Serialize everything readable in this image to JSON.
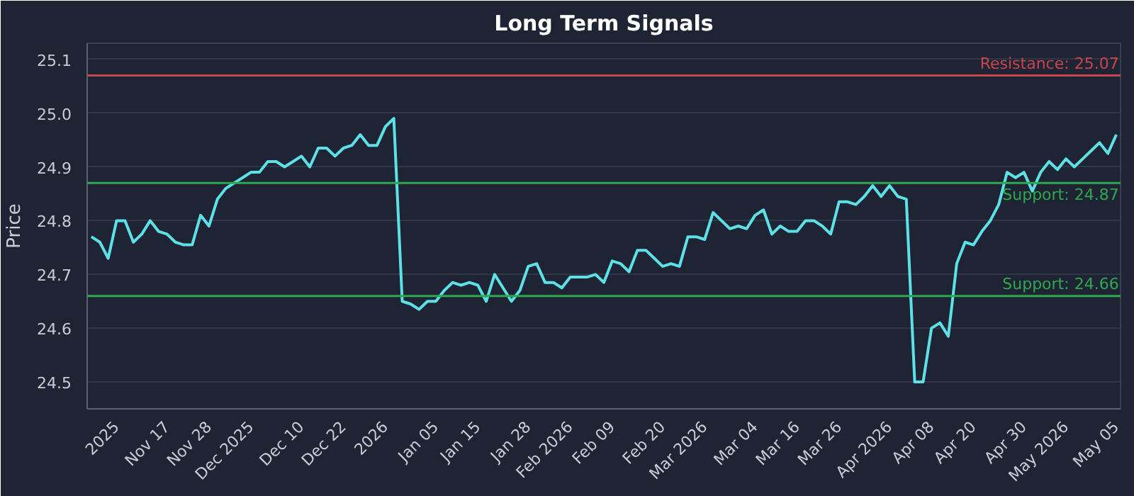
{
  "chart_data": {
    "type": "line",
    "title": "Long Term Signals",
    "ylabel": "Price",
    "categories": [
      null,
      null,
      null,
      "2025",
      null,
      null,
      null,
      null,
      null,
      "Nov 17",
      null,
      null,
      null,
      null,
      "Nov 28",
      null,
      null,
      null,
      null,
      "Dec 2025",
      null,
      null,
      null,
      null,
      null,
      "Dec 10",
      null,
      null,
      null,
      null,
      "Dec 22",
      null,
      null,
      null,
      null,
      "2026",
      null,
      null,
      null,
      null,
      null,
      "Jan 05",
      null,
      null,
      null,
      null,
      "Jan 15",
      null,
      null,
      null,
      null,
      null,
      "Jan 28",
      null,
      null,
      null,
      null,
      "Feb 2026",
      null,
      null,
      null,
      null,
      "Feb 09",
      null,
      null,
      null,
      null,
      null,
      "Feb 20",
      null,
      null,
      null,
      null,
      "Mar 2026",
      null,
      null,
      null,
      null,
      null,
      "Mar 04",
      null,
      null,
      null,
      null,
      "Mar 16",
      null,
      null,
      null,
      null,
      "Mar 26",
      null,
      null,
      null,
      null,
      null,
      "Apr 2026",
      null,
      null,
      null,
      null,
      "Apr 08",
      null,
      null,
      null,
      null,
      "Apr 20",
      null,
      null,
      null,
      null,
      null,
      "Apr 30",
      null,
      null,
      null,
      null,
      "May 2026",
      null,
      null,
      null,
      null,
      null,
      "May 05"
    ],
    "series": [
      {
        "color": "#5ce1e6",
        "values": [
          24.77,
          24.76,
          24.73,
          24.8,
          24.8,
          24.76,
          24.775,
          24.8,
          24.78,
          24.775,
          24.76,
          24.755,
          24.755,
          24.81,
          24.79,
          24.84,
          24.86,
          24.87,
          24.88,
          24.89,
          24.89,
          24.91,
          24.91,
          24.9,
          24.91,
          24.92,
          24.9,
          24.935,
          24.935,
          24.92,
          24.935,
          24.94,
          24.96,
          24.94,
          24.94,
          24.975,
          24.99,
          24.65,
          24.645,
          24.635,
          24.65,
          24.65,
          24.67,
          24.685,
          24.68,
          24.685,
          24.68,
          24.65,
          24.7,
          24.675,
          24.65,
          24.67,
          24.715,
          24.72,
          24.685,
          24.685,
          24.675,
          24.695,
          24.695,
          24.695,
          24.7,
          24.685,
          24.725,
          24.72,
          24.705,
          24.745,
          24.745,
          24.73,
          24.715,
          24.72,
          24.715,
          24.77,
          24.77,
          24.765,
          24.815,
          24.8,
          24.785,
          24.79,
          24.785,
          24.81,
          24.82,
          24.775,
          24.79,
          24.78,
          24.78,
          24.8,
          24.8,
          24.79,
          24.775,
          24.835,
          24.835,
          24.83,
          24.845,
          24.865,
          24.845,
          24.865,
          24.845,
          24.84,
          24.5,
          24.5,
          24.6,
          24.61,
          24.585,
          24.72,
          24.76,
          24.755,
          24.78,
          24.8,
          24.83,
          24.89,
          24.88,
          24.89,
          24.855,
          24.89,
          24.91,
          24.895,
          24.915,
          24.9,
          24.915,
          24.93,
          24.945,
          24.925,
          24.96
        ]
      }
    ],
    "ylim": [
      24.45,
      25.13
    ],
    "yticks": [
      24.5,
      24.6,
      24.7,
      24.8,
      24.9,
      {
        "value": 25,
        "label": "25.0"
      },
      25.1
    ],
    "ref_lines": [
      {
        "axis": "y",
        "value": 25.07,
        "label": "Resistance: 25.07",
        "color": "#c8454f"
      },
      {
        "axis": "y",
        "value": 24.87,
        "label": "Support: 24.87",
        "color": "#2ea84f"
      },
      {
        "axis": "y",
        "value": 24.66,
        "label": "Support: 24.66",
        "color": "#2ea84f"
      }
    ],
    "grid": "y"
  }
}
